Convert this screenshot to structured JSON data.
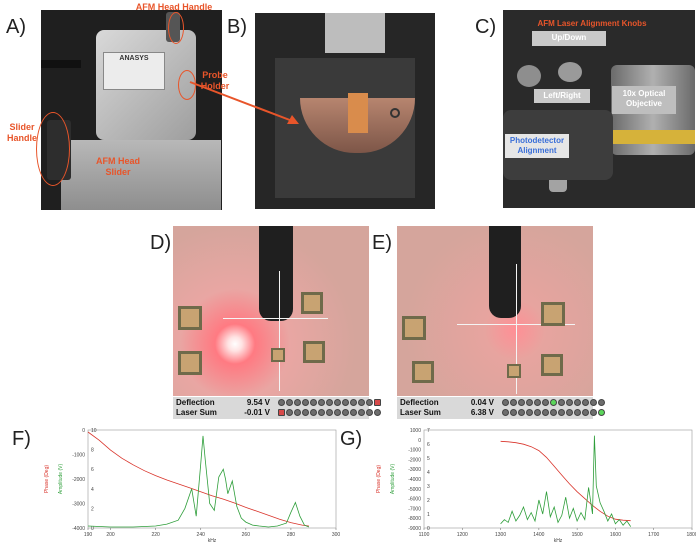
{
  "panels": {
    "A": {
      "letter": "A)",
      "annotations": {
        "head_handle": "AFM Head Handle",
        "probe_holder": "Probe Holder",
        "slider_handle": "Slider Handle",
        "head_slider": "AFM Head Slider"
      }
    },
    "B": {
      "letter": "B)"
    },
    "C": {
      "letter": "C)",
      "annotations": {
        "knobs_title": "AFM Laser Alignment Knobs",
        "updown": "Up/Down",
        "leftright": "Left/Right",
        "objective": "10x Optical Objective",
        "photodetector": "Photodetector Alignment"
      }
    },
    "D": {
      "letter": "D)",
      "deflection_label": "Deflection",
      "deflection_value": "9.54 V",
      "lasersum_label": "Laser Sum",
      "lasersum_value": "-0.01 V"
    },
    "E": {
      "letter": "E)",
      "deflection_label": "Deflection",
      "deflection_value": "0.04 V",
      "lasersum_label": "Laser Sum",
      "lasersum_value": "6.38 V"
    },
    "F": {
      "letter": "F)"
    },
    "G": {
      "letter": "G)"
    }
  },
  "logo_text": "ANASYS",
  "colors": {
    "annotation": "#e8552a",
    "phase": "#d9342b",
    "amplitude": "#2e9e3a",
    "blue_label": "#3a6fd8"
  },
  "chart_data": [
    {
      "type": "line",
      "panel": "F",
      "xlabel": "kHz",
      "ylabel_left": "Phase (Deg)",
      "ylabel_right": "Amplitude (V)",
      "xlim": [
        190,
        300
      ],
      "xticks": [
        190,
        200,
        220,
        240,
        260,
        280,
        300
      ],
      "ylim_left": [
        -4000,
        0
      ],
      "yticks_left": [
        "0",
        "-1000",
        "-2000",
        "-3000",
        "-4000"
      ],
      "ylim_right": [
        0,
        10
      ],
      "yticks_right": [
        "10",
        "8",
        "6",
        "4",
        "2",
        "0"
      ],
      "series": [
        {
          "axis": "left",
          "color": "#d9342b",
          "x": [
            190,
            195,
            200,
            205,
            210,
            215,
            220,
            225,
            230,
            235,
            240,
            245,
            250,
            255,
            260,
            265,
            270,
            275,
            280,
            285,
            288
          ],
          "y": [
            -80,
            -420,
            -820,
            -1150,
            -1420,
            -1660,
            -1860,
            -2040,
            -2200,
            -2360,
            -2520,
            -2680,
            -2820,
            -2980,
            -3160,
            -3320,
            -3480,
            -3640,
            -3780,
            -3880,
            -3920
          ]
        },
        {
          "axis": "right",
          "color": "#2e9e3a",
          "x": [
            190,
            200,
            210,
            220,
            225,
            230,
            233,
            236,
            238,
            240,
            241,
            242,
            244,
            246,
            248,
            250,
            251,
            252,
            254,
            256,
            258,
            260,
            263,
            266,
            270,
            274,
            278,
            280,
            282,
            284,
            286,
            288
          ],
          "y": [
            0.2,
            0.1,
            0.1,
            0.2,
            0.4,
            0.8,
            2.0,
            4.0,
            1.2,
            6.5,
            9.4,
            7.0,
            2.5,
            1.8,
            5.2,
            6.0,
            5.0,
            3.5,
            4.8,
            2.2,
            1.0,
            0.6,
            0.3,
            0.2,
            0.1,
            0.2,
            0.5,
            1.6,
            2.6,
            1.2,
            0.3,
            0.1
          ]
        }
      ]
    },
    {
      "type": "line",
      "panel": "G",
      "xlabel": "kHz",
      "ylabel_left": "Phase (Deg)",
      "ylabel_right": "Amplitude (V)",
      "xlim": [
        1100,
        1800
      ],
      "xticks": [
        1100,
        1200,
        1300,
        1400,
        1500,
        1600,
        1700,
        1800
      ],
      "ylim_left": [
        -9000,
        1000
      ],
      "yticks_left": [
        "1000",
        "0",
        "-1000",
        "-2000",
        "-3000",
        "-4000",
        "-5000",
        "-6000",
        "-7000",
        "-8000",
        "-9000"
      ],
      "ylim_right": [
        0,
        7
      ],
      "yticks_right": [
        "7",
        "6",
        "5",
        "4",
        "3",
        "2",
        "1",
        "0"
      ],
      "series": [
        {
          "axis": "left",
          "color": "#d9342b",
          "x": [
            1300,
            1320,
            1340,
            1360,
            1380,
            1400,
            1420,
            1440,
            1460,
            1480,
            1500,
            1520,
            1540,
            1560,
            1580,
            1600,
            1620,
            1640
          ],
          "y": [
            -150,
            -200,
            -300,
            -450,
            -700,
            -1100,
            -1800,
            -2700,
            -3600,
            -4500,
            -5300,
            -6000,
            -6700,
            -7300,
            -7800,
            -8100,
            -8200,
            -8250
          ]
        },
        {
          "axis": "right",
          "color": "#2e9e3a",
          "x": [
            1300,
            1310,
            1320,
            1330,
            1340,
            1350,
            1360,
            1370,
            1380,
            1390,
            1400,
            1410,
            1420,
            1430,
            1440,
            1450,
            1460,
            1470,
            1480,
            1490,
            1500,
            1510,
            1520,
            1530,
            1540,
            1545,
            1550,
            1555,
            1560,
            1570,
            1580,
            1590,
            1600,
            1610,
            1620,
            1630,
            1640
          ],
          "y": [
            0.3,
            0.6,
            0.4,
            1.2,
            0.5,
            0.9,
            1.5,
            0.6,
            1.1,
            0.5,
            2.0,
            1.0,
            2.6,
            0.8,
            1.5,
            0.4,
            0.9,
            2.2,
            0.7,
            1.4,
            0.5,
            1.1,
            0.6,
            2.9,
            1.0,
            6.6,
            3.0,
            2.4,
            1.8,
            1.2,
            0.5,
            1.0,
            0.3,
            0.6,
            0.2,
            0.5,
            0.1
          ]
        }
      ]
    }
  ]
}
